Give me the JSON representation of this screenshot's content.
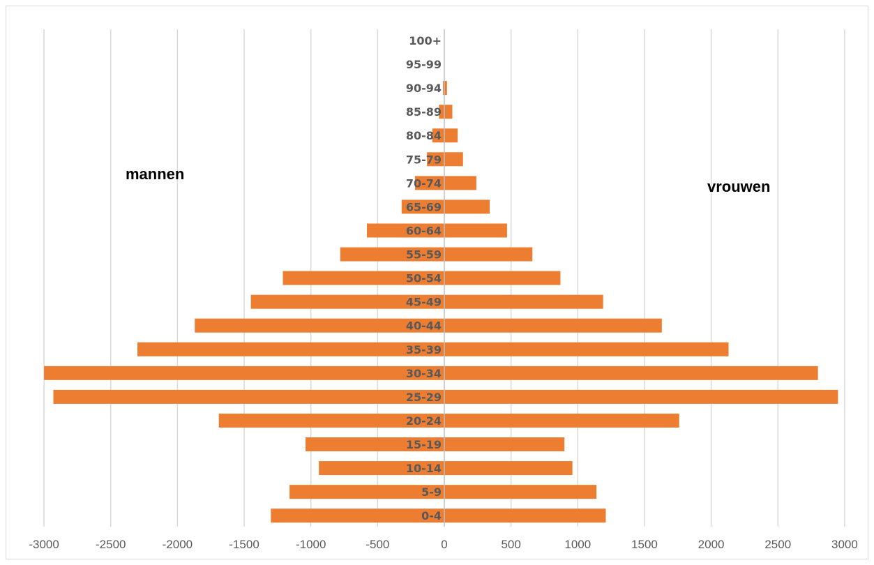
{
  "chart_data": {
    "type": "bar",
    "orientation": "horizontal",
    "layout": "population-pyramid",
    "categories": [
      "0-4",
      "5-9",
      "10-14",
      "15-19",
      "20-24",
      "25-29",
      "30-34",
      "35-39",
      "40-44",
      "45-49",
      "50-54",
      "55-59",
      "60-64",
      "65-69",
      "70-74",
      "75-79",
      "80-84",
      "85-89",
      "90-94",
      "95-99",
      "100+"
    ],
    "series": [
      {
        "name": "mannen",
        "values": [
          -1300,
          -1160,
          -940,
          -1040,
          -1690,
          -2930,
          -3000,
          -2300,
          -1870,
          -1450,
          -1210,
          -780,
          -580,
          -320,
          -220,
          -130,
          -90,
          -40,
          -10,
          0,
          0
        ]
      },
      {
        "name": "vrouwen",
        "values": [
          1210,
          1140,
          960,
          900,
          1760,
          2950,
          2800,
          2130,
          1630,
          1190,
          870,
          660,
          470,
          340,
          240,
          140,
          100,
          60,
          20,
          0,
          0
        ]
      }
    ],
    "bar_color": "#ED7D31",
    "xlim": [
      -3000,
      3000
    ],
    "x_ticks": [
      "-3000",
      "-2500",
      "-2000",
      "-1500",
      "-1000",
      "-500",
      "0",
      "500",
      "1000",
      "1500",
      "2000",
      "2500",
      "3000"
    ],
    "grid": "vertical",
    "title": "",
    "xlabel": "",
    "ylabel": ""
  },
  "annotations": {
    "left_label": "mannen",
    "right_label": "vrouwen"
  }
}
